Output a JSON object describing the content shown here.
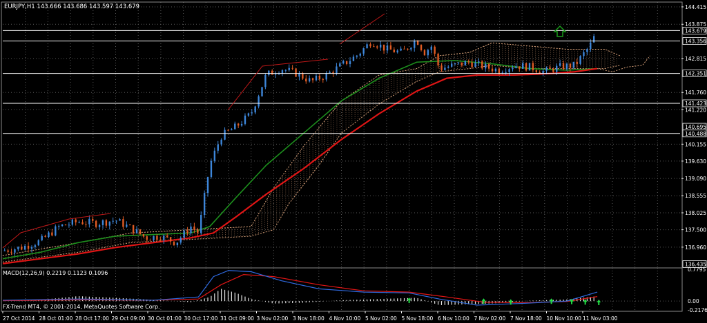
{
  "header": {
    "symbol_line": "EURJPY,H1  143.666 143.686 143.597 143.679"
  },
  "macd_panel": {
    "title": "MACD(12,26,9) 0.2219 0.1123 0.1096",
    "caption": "FX-Trend MT4, © 2001-2014, MetaQuotes Software Corp."
  },
  "colors": {
    "background": "#000000",
    "grid": "#5a5a5a",
    "bull_candle": "#3d86d9",
    "bear_candle": "#e05b23",
    "ma_slow": "#e01515",
    "ma_fast": "#1d8f1d",
    "ichimoku_cloud": "#d9a27a",
    "hline": "#ffffff",
    "up_arrow": "#1a7f1a",
    "macd_hist": "#e6e6e6",
    "macd_blue": "#2f6ae0",
    "macd_red": "#e01515",
    "signal_arrow": "#22dd44",
    "text": "#ffffff"
  },
  "chart_data": [
    {
      "type": "candlestick",
      "title": "EURJPY,H1",
      "ylim": [
        136.38,
        144.5
      ],
      "y_ticks": [
        144.415,
        143.875,
        142.815,
        141.76,
        141.22,
        140.155,
        139.63,
        139.09,
        138.555,
        138.025,
        137.5,
        136.96
      ],
      "price_labels": [
        143.679,
        143.356,
        142.351,
        141.423,
        140.695,
        140.488,
        136.435
      ],
      "horizontal_levels": [
        143.679,
        143.356,
        142.351,
        141.423,
        140.488
      ],
      "x_ticks": [
        "27 Oct 2014",
        "28 Oct 01:00",
        "28 Oct 17:00",
        "29 Oct 09:00",
        "30 Oct 01:00",
        "30 Oct 17:00",
        "31 Oct 09:00",
        "3 Nov 02:00",
        "3 Nov 18:00",
        "4 Nov 10:00",
        "5 Nov 02:00",
        "5 Nov 18:00",
        "6 Nov 10:00",
        "7 Nov 02:00",
        "7 Nov 18:00",
        "10 Nov 10:00",
        "11 Nov 03:00"
      ],
      "close_path": [
        {
          "x": 0,
          "y": 136.85
        },
        {
          "x": 5,
          "y": 136.95
        },
        {
          "x": 10,
          "y": 137.15
        },
        {
          "x": 15,
          "y": 137.6
        },
        {
          "x": 20,
          "y": 137.75
        },
        {
          "x": 25,
          "y": 137.7
        },
        {
          "x": 30,
          "y": 137.8
        },
        {
          "x": 34,
          "y": 137.55
        },
        {
          "x": 38,
          "y": 137.25
        },
        {
          "x": 42,
          "y": 137.3
        },
        {
          "x": 46,
          "y": 137.1
        },
        {
          "x": 50,
          "y": 137.6
        },
        {
          "x": 52,
          "y": 137.4
        },
        {
          "x": 55,
          "y": 139.5
        },
        {
          "x": 58,
          "y": 140.4
        },
        {
          "x": 62,
          "y": 140.7
        },
        {
          "x": 66,
          "y": 141.1
        },
        {
          "x": 70,
          "y": 142.3
        },
        {
          "x": 74,
          "y": 142.5
        },
        {
          "x": 78,
          "y": 142.35
        },
        {
          "x": 82,
          "y": 142.1
        },
        {
          "x": 86,
          "y": 142.3
        },
        {
          "x": 90,
          "y": 142.6
        },
        {
          "x": 94,
          "y": 142.9
        },
        {
          "x": 98,
          "y": 143.35
        },
        {
          "x": 102,
          "y": 143.1
        },
        {
          "x": 106,
          "y": 143.0
        },
        {
          "x": 110,
          "y": 143.4
        },
        {
          "x": 112,
          "y": 143.0
        },
        {
          "x": 114,
          "y": 143.2
        },
        {
          "x": 116,
          "y": 142.5
        },
        {
          "x": 120,
          "y": 142.6
        },
        {
          "x": 124,
          "y": 142.7
        },
        {
          "x": 128,
          "y": 142.55
        },
        {
          "x": 132,
          "y": 142.45
        },
        {
          "x": 136,
          "y": 142.6
        },
        {
          "x": 140,
          "y": 142.55
        },
        {
          "x": 144,
          "y": 142.4
        },
        {
          "x": 148,
          "y": 142.55
        },
        {
          "x": 152,
          "y": 142.6
        },
        {
          "x": 156,
          "y": 143.2
        },
        {
          "x": 158,
          "y": 143.68
        }
      ],
      "ma_fast": [
        {
          "x": 0,
          "y": 136.6
        },
        {
          "x": 10,
          "y": 136.8
        },
        {
          "x": 20,
          "y": 137.1
        },
        {
          "x": 30,
          "y": 137.3
        },
        {
          "x": 40,
          "y": 137.35
        },
        {
          "x": 50,
          "y": 137.4
        },
        {
          "x": 55,
          "y": 137.6
        },
        {
          "x": 62,
          "y": 138.5
        },
        {
          "x": 70,
          "y": 139.5
        },
        {
          "x": 80,
          "y": 140.5
        },
        {
          "x": 90,
          "y": 141.5
        },
        {
          "x": 100,
          "y": 142.2
        },
        {
          "x": 110,
          "y": 142.7
        },
        {
          "x": 120,
          "y": 142.75
        },
        {
          "x": 130,
          "y": 142.65
        },
        {
          "x": 140,
          "y": 142.5
        },
        {
          "x": 150,
          "y": 142.45
        },
        {
          "x": 158,
          "y": 142.5
        }
      ],
      "ma_slow": [
        {
          "x": 0,
          "y": 136.45
        },
        {
          "x": 10,
          "y": 136.6
        },
        {
          "x": 20,
          "y": 136.75
        },
        {
          "x": 30,
          "y": 136.95
        },
        {
          "x": 40,
          "y": 137.1
        },
        {
          "x": 50,
          "y": 137.25
        },
        {
          "x": 56,
          "y": 137.4
        },
        {
          "x": 62,
          "y": 137.9
        },
        {
          "x": 70,
          "y": 138.6
        },
        {
          "x": 80,
          "y": 139.4
        },
        {
          "x": 90,
          "y": 140.3
        },
        {
          "x": 100,
          "y": 141.1
        },
        {
          "x": 110,
          "y": 141.8
        },
        {
          "x": 118,
          "y": 142.2
        },
        {
          "x": 126,
          "y": 142.3
        },
        {
          "x": 136,
          "y": 142.3
        },
        {
          "x": 146,
          "y": 142.35
        },
        {
          "x": 152,
          "y": 142.4
        },
        {
          "x": 158,
          "y": 142.5
        }
      ],
      "cloud_upper": [
        {
          "x": 0,
          "y": 136.7
        },
        {
          "x": 20,
          "y": 137.1
        },
        {
          "x": 34,
          "y": 137.4
        },
        {
          "x": 50,
          "y": 137.5
        },
        {
          "x": 66,
          "y": 137.6
        },
        {
          "x": 72,
          "y": 138.8
        },
        {
          "x": 80,
          "y": 140.1
        },
        {
          "x": 90,
          "y": 141.5
        },
        {
          "x": 100,
          "y": 142.3
        },
        {
          "x": 110,
          "y": 142.5
        },
        {
          "x": 116,
          "y": 142.9
        },
        {
          "x": 124,
          "y": 143.0
        },
        {
          "x": 130,
          "y": 143.3
        },
        {
          "x": 140,
          "y": 143.2
        },
        {
          "x": 150,
          "y": 143.1
        },
        {
          "x": 160,
          "y": 143.1
        },
        {
          "x": 164,
          "y": 142.9
        }
      ],
      "cloud_lower": [
        {
          "x": 0,
          "y": 136.5
        },
        {
          "x": 20,
          "y": 136.8
        },
        {
          "x": 34,
          "y": 137.1
        },
        {
          "x": 50,
          "y": 137.2
        },
        {
          "x": 66,
          "y": 137.3
        },
        {
          "x": 72,
          "y": 137.5
        },
        {
          "x": 76,
          "y": 138.3
        },
        {
          "x": 84,
          "y": 139.5
        },
        {
          "x": 90,
          "y": 140.5
        },
        {
          "x": 100,
          "y": 141.4
        },
        {
          "x": 110,
          "y": 142.1
        },
        {
          "x": 116,
          "y": 142.4
        },
        {
          "x": 124,
          "y": 142.5
        },
        {
          "x": 130,
          "y": 142.6
        },
        {
          "x": 140,
          "y": 142.5
        },
        {
          "x": 150,
          "y": 142.5
        },
        {
          "x": 160,
          "y": 142.5
        },
        {
          "x": 164,
          "y": 142.6
        }
      ],
      "lagging_span": [
        {
          "x": 158,
          "y": 142.5
        },
        {
          "x": 162,
          "y": 142.4
        },
        {
          "x": 166,
          "y": 142.55
        },
        {
          "x": 170,
          "y": 142.6
        },
        {
          "x": 172,
          "y": 142.9
        }
      ]
    },
    {
      "type": "macd",
      "title": "MACD(12,26,9)",
      "ylim": [
        -0.2176,
        0.7795
      ],
      "y_ticks": [
        0.7795,
        0.0,
        -0.2176
      ],
      "histogram_path": [
        {
          "x": 0,
          "y": 0.02
        },
        {
          "x": 10,
          "y": 0.03
        },
        {
          "x": 20,
          "y": 0.12
        },
        {
          "x": 30,
          "y": 0.08
        },
        {
          "x": 40,
          "y": 0.03
        },
        {
          "x": 50,
          "y": -0.03
        },
        {
          "x": 55,
          "y": 0.1
        },
        {
          "x": 58,
          "y": 0.3
        },
        {
          "x": 62,
          "y": 0.2
        },
        {
          "x": 66,
          "y": 0.05
        },
        {
          "x": 72,
          "y": -0.06
        },
        {
          "x": 80,
          "y": -0.04
        },
        {
          "x": 90,
          "y": 0.02
        },
        {
          "x": 100,
          "y": 0.05
        },
        {
          "x": 110,
          "y": 0.08
        },
        {
          "x": 116,
          "y": -0.1
        },
        {
          "x": 124,
          "y": -0.08
        },
        {
          "x": 132,
          "y": -0.05
        },
        {
          "x": 140,
          "y": 0.01
        },
        {
          "x": 150,
          "y": 0.04
        },
        {
          "x": 158,
          "y": 0.12
        }
      ],
      "macd_line": [
        {
          "x": 0,
          "y": 0.02
        },
        {
          "x": 20,
          "y": 0.05
        },
        {
          "x": 40,
          "y": 0.02
        },
        {
          "x": 52,
          "y": 0.1
        },
        {
          "x": 56,
          "y": 0.6
        },
        {
          "x": 60,
          "y": 0.75
        },
        {
          "x": 66,
          "y": 0.72
        },
        {
          "x": 74,
          "y": 0.5
        },
        {
          "x": 84,
          "y": 0.3
        },
        {
          "x": 96,
          "y": 0.22
        },
        {
          "x": 108,
          "y": 0.2
        },
        {
          "x": 116,
          "y": 0.05
        },
        {
          "x": 126,
          "y": -0.1
        },
        {
          "x": 140,
          "y": -0.05
        },
        {
          "x": 150,
          "y": 0.0
        },
        {
          "x": 158,
          "y": 0.22
        }
      ],
      "signal_line": [
        {
          "x": 0,
          "y": 0.01
        },
        {
          "x": 20,
          "y": 0.03
        },
        {
          "x": 40,
          "y": 0.02
        },
        {
          "x": 52,
          "y": 0.05
        },
        {
          "x": 58,
          "y": 0.4
        },
        {
          "x": 64,
          "y": 0.65
        },
        {
          "x": 72,
          "y": 0.6
        },
        {
          "x": 84,
          "y": 0.4
        },
        {
          "x": 96,
          "y": 0.25
        },
        {
          "x": 108,
          "y": 0.22
        },
        {
          "x": 118,
          "y": 0.1
        },
        {
          "x": 128,
          "y": -0.03
        },
        {
          "x": 140,
          "y": -0.04
        },
        {
          "x": 150,
          "y": -0.01
        },
        {
          "x": 158,
          "y": 0.11
        }
      ]
    }
  ]
}
